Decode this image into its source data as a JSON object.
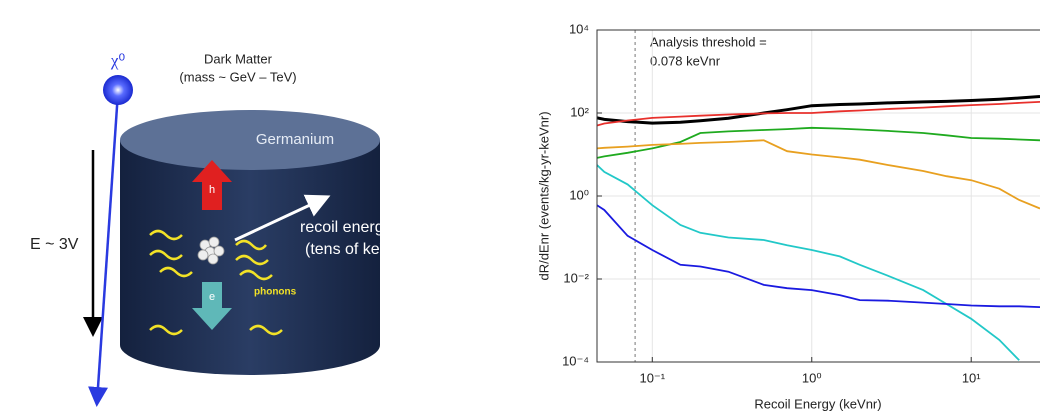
{
  "diagram": {
    "particle": "χ⁰",
    "dark_matter": "Dark Matter",
    "mass": "(mass ~ GeV – TeV)",
    "detector": "Germanium",
    "hole": "h",
    "electron": "e",
    "recoil_1": "recoil  energy",
    "recoil_2": "(tens of keV)",
    "field": "E ~ 3V",
    "phonons": "phonons"
  },
  "chart_data": {
    "type": "line",
    "xlabel": "Recoil Energy (keVnr)",
    "ylabel": "dR/dEnr (events/kg-yr-keVnr)",
    "xscale": "log",
    "yscale": "log",
    "grid": true,
    "xlim": [
      0.045,
      27
    ],
    "ylim": [
      0.0001,
      10000
    ],
    "xticks": [
      {
        "value": 0.1,
        "label": "10⁻¹"
      },
      {
        "value": 1,
        "label": "10⁰"
      },
      {
        "value": 10,
        "label": "10¹"
      }
    ],
    "yticks": [
      {
        "value": 0.0001,
        "label": "10⁻⁴"
      },
      {
        "value": 0.01,
        "label": "10⁻²"
      },
      {
        "value": 1,
        "label": "10⁰"
      },
      {
        "value": 100,
        "label": "10²"
      },
      {
        "value": 10000,
        "label": "10⁴"
      }
    ],
    "threshold": 0.078,
    "annotation": [
      "Analysis threshold =",
      "0.078 keVnr"
    ],
    "x": [
      0.045,
      0.05,
      0.07,
      0.1,
      0.15,
      0.2,
      0.3,
      0.5,
      0.7,
      1,
      1.5,
      2,
      3,
      5,
      7,
      10,
      15,
      20,
      27
    ],
    "series": [
      {
        "color": "#000000",
        "values": [
          76,
          70,
          62,
          57,
          60,
          65,
          75,
          100,
          120,
          150,
          160,
          165,
          175,
          185,
          190,
          200,
          215,
          230,
          250
        ]
      },
      {
        "color": "#e8302c",
        "values": [
          50,
          56,
          66,
          76,
          82,
          86,
          92,
          98,
          100,
          100,
          110,
          115,
          125,
          135,
          145,
          155,
          165,
          175,
          185
        ]
      },
      {
        "color": "#1faa1f",
        "values": [
          8.3,
          9,
          11,
          14,
          20,
          33,
          36,
          39,
          41,
          44,
          42,
          40,
          37,
          33,
          29,
          25,
          24,
          23,
          22
        ]
      },
      {
        "color": "#e8a020",
        "values": [
          14,
          14.5,
          15.5,
          17,
          18,
          19,
          20,
          22,
          12,
          10,
          8.5,
          7.5,
          5.6,
          4,
          3,
          2.4,
          1.5,
          0.8,
          0.5
        ]
      },
      {
        "color": "#22c8c8",
        "values": [
          5.6,
          3.8,
          1.9,
          0.6,
          0.2,
          0.13,
          0.1,
          0.087,
          0.065,
          0.05,
          0.035,
          0.022,
          0.012,
          0.0054,
          0.0025,
          0.0011,
          0.00034,
          0.00011,
          null
        ]
      },
      {
        "color": "#1a1ae0",
        "values": [
          0.6,
          0.46,
          0.11,
          0.05,
          0.022,
          0.02,
          0.015,
          0.0072,
          0.006,
          0.0054,
          0.0041,
          0.0031,
          0.003,
          0.0027,
          0.0025,
          0.0023,
          0.0022,
          0.0022,
          0.0021
        ]
      }
    ]
  }
}
